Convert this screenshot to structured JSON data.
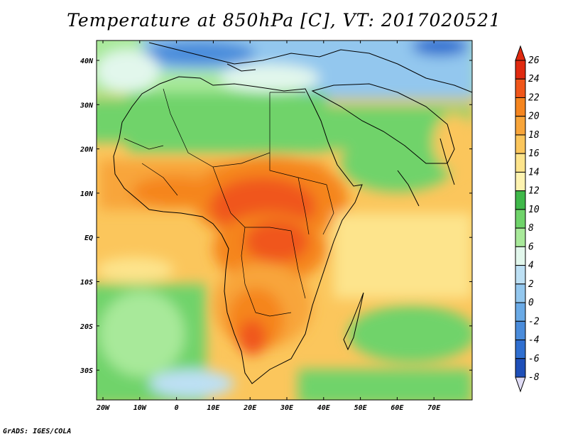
{
  "title": "Temperature at 850hPa [C], VT: 2017020521",
  "credit": "GrADS: IGES/COLA",
  "lat_labels": [
    "40N",
    "30N",
    "20N",
    "10N",
    "EQ",
    "10S",
    "20S",
    "30S"
  ],
  "lon_labels": [
    "20W",
    "10W",
    "0",
    "10E",
    "20E",
    "30E",
    "40E",
    "50E",
    "60E",
    "70E"
  ],
  "colorbar": {
    "labels": [
      "26",
      "24",
      "22",
      "20",
      "18",
      "16",
      "14",
      "12",
      "10",
      "8",
      "6",
      "4",
      "2",
      "0",
      "-2",
      "-4",
      "-6",
      "-8"
    ],
    "colors": [
      "#e02a10",
      "#f0561a",
      "#f5851f",
      "#f8a53a",
      "#fbc65c",
      "#fde48c",
      "#fef3b0",
      "#3fb84a",
      "#6fd36a",
      "#a8e99a",
      "#e2f7ec",
      "#bde0f4",
      "#93c7ee",
      "#6aaae6",
      "#4a8cdb",
      "#2f6fd0",
      "#1e4fb8",
      "#0f2d8a"
    ]
  }
}
